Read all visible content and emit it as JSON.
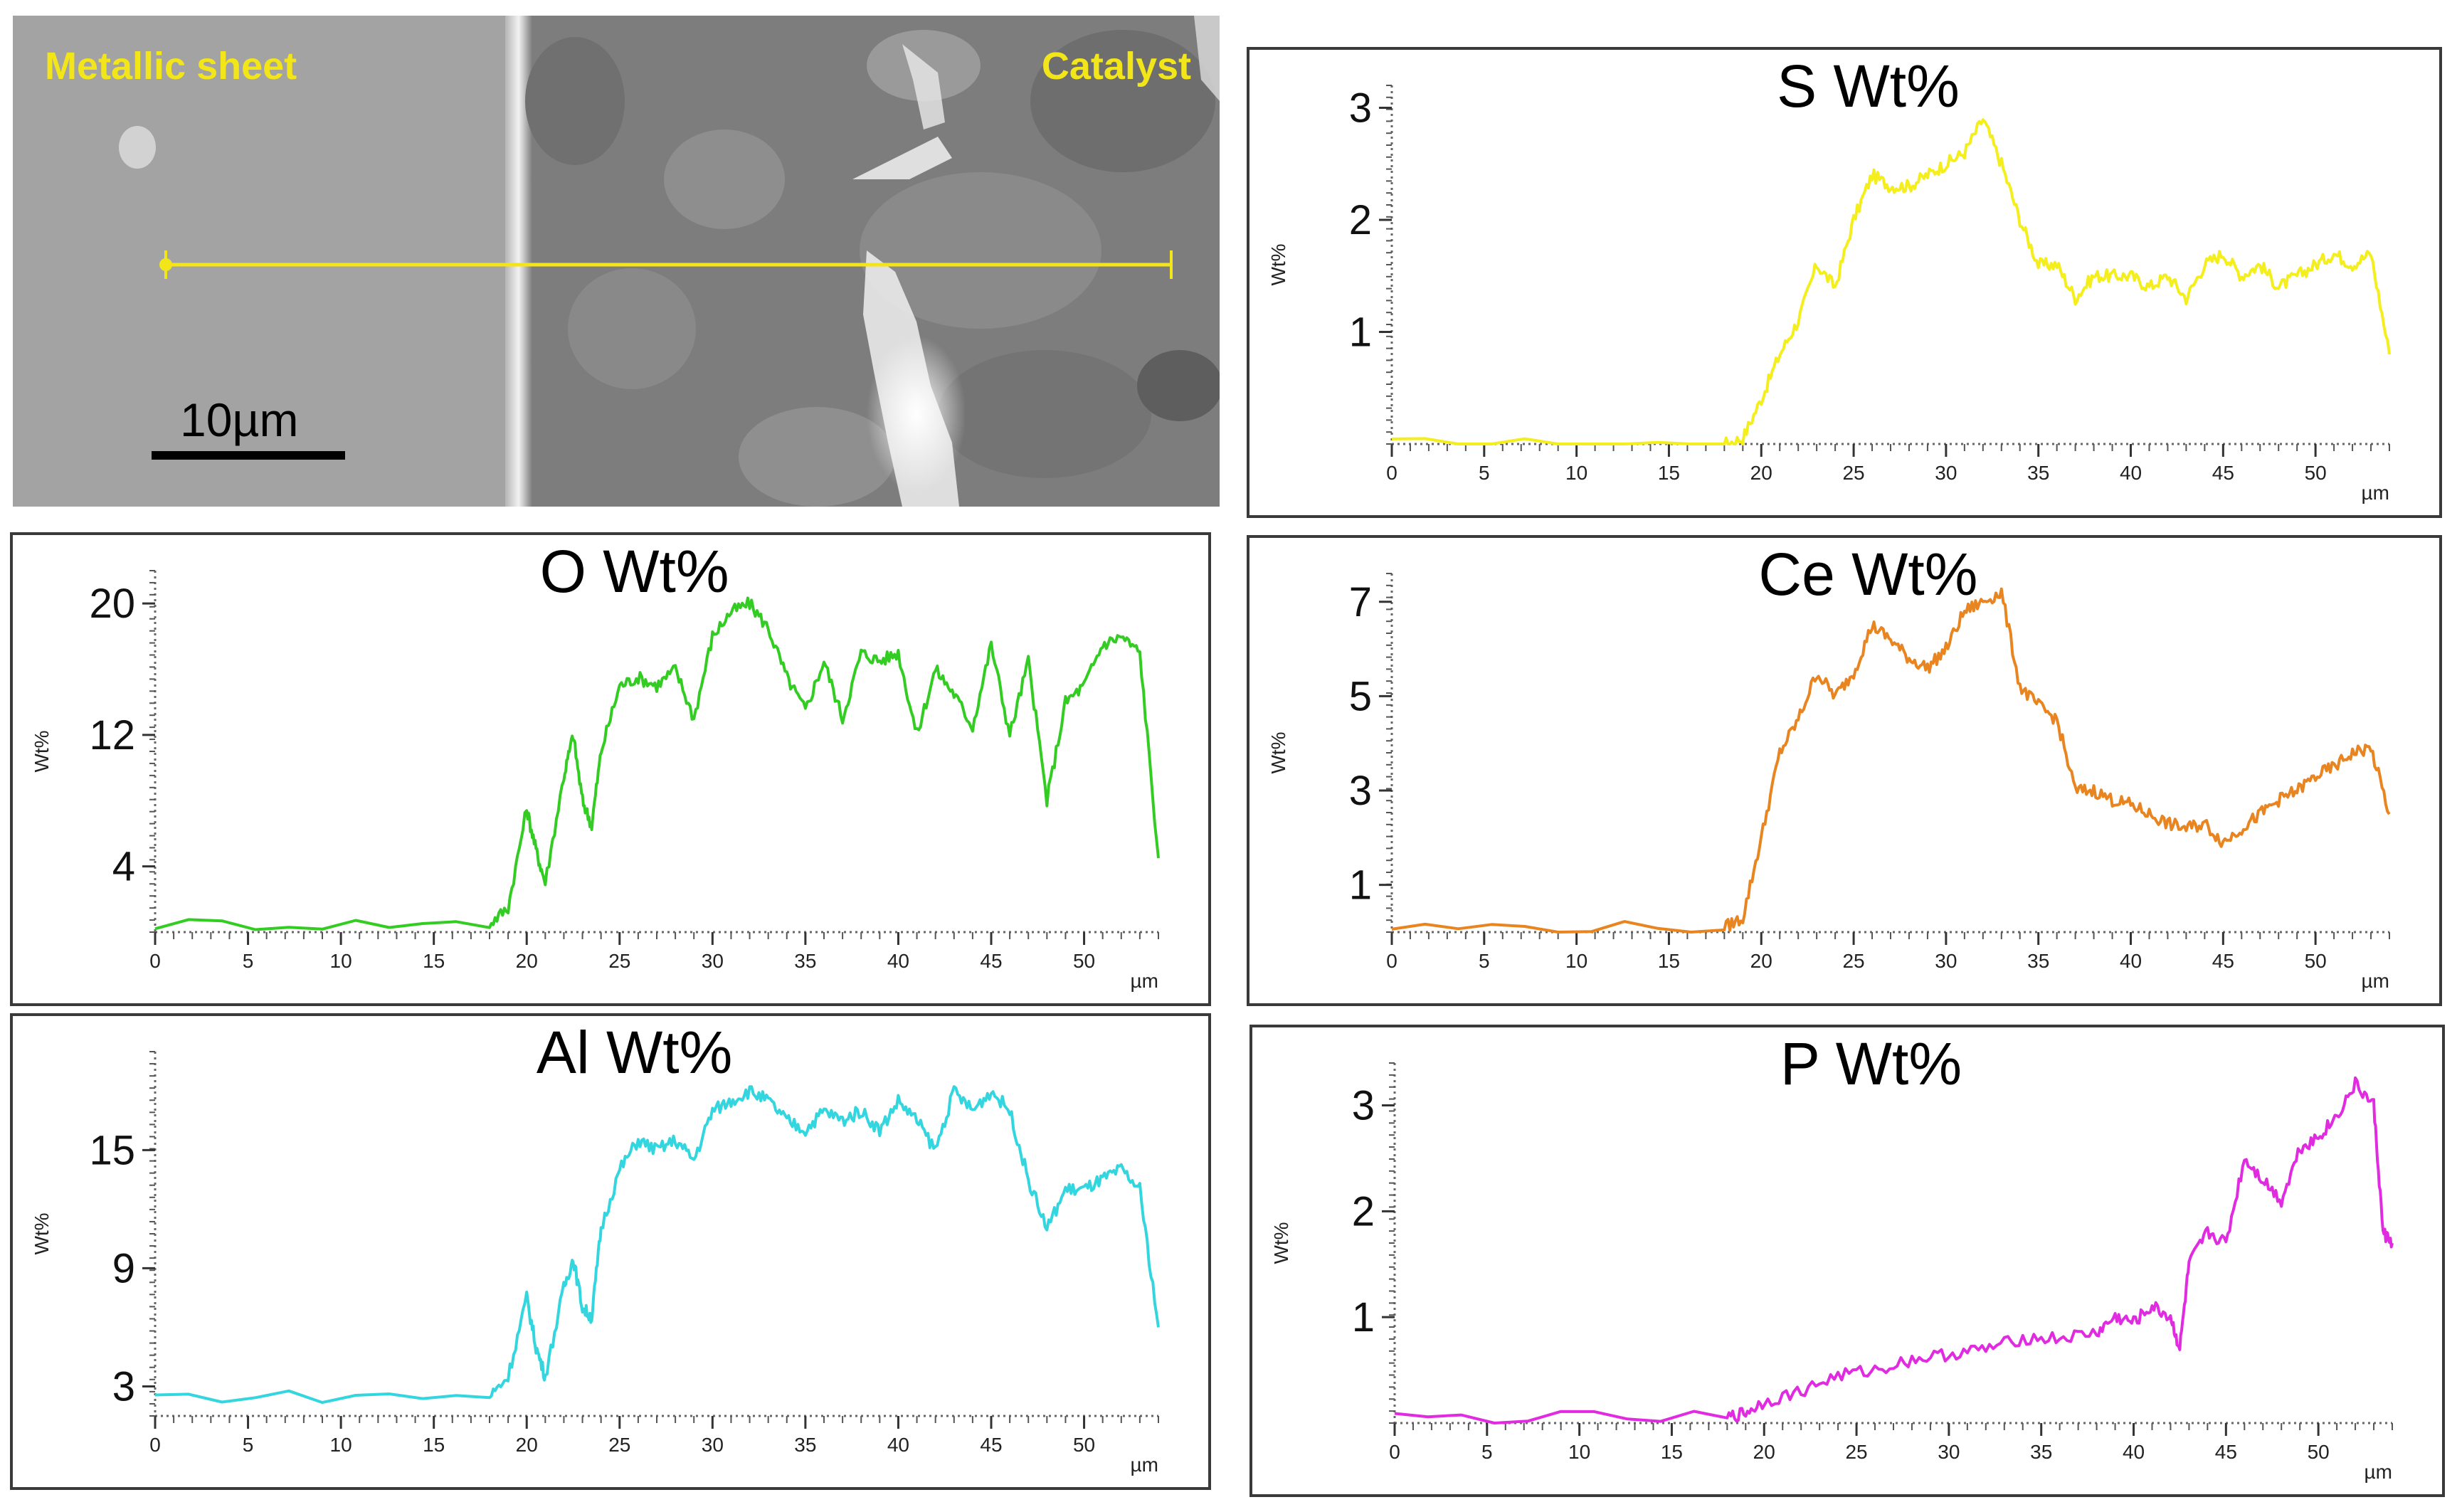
{
  "sem_image": {
    "left_label": "Metallic sheet",
    "right_label": "Catalyst",
    "scale_bar_label": "10µm",
    "line_color": "#f2e61a"
  },
  "chart_data": [
    {
      "type": "line",
      "id": "s",
      "title": "S Wt%",
      "ylabel": "Wt%",
      "xlabel": "µm",
      "color": "#f5ee1d",
      "xlim": [
        0,
        54
      ],
      "ylim": [
        0,
        3.2
      ],
      "yticks": [
        1,
        2,
        3
      ],
      "xticks": [
        0,
        5,
        10,
        15,
        20,
        25,
        30,
        35,
        40,
        45,
        50
      ],
      "x": [
        0,
        18,
        19,
        20,
        21,
        22,
        23,
        24,
        25,
        26,
        27,
        28,
        29,
        30,
        31,
        32,
        33,
        34,
        35,
        36,
        37,
        38,
        39,
        40,
        41,
        42,
        43,
        44,
        45,
        46,
        47,
        48,
        49,
        50,
        51,
        52,
        53,
        54
      ],
      "values": [
        0,
        0,
        0.05,
        0.4,
        0.8,
        1.1,
        1.6,
        1.4,
        2.0,
        2.4,
        2.3,
        2.3,
        2.4,
        2.5,
        2.6,
        2.9,
        2.5,
        2.0,
        1.6,
        1.6,
        1.3,
        1.5,
        1.5,
        1.5,
        1.4,
        1.5,
        1.3,
        1.6,
        1.7,
        1.5,
        1.6,
        1.4,
        1.5,
        1.6,
        1.7,
        1.6,
        1.7,
        0.8
      ]
    },
    {
      "type": "line",
      "id": "o",
      "title": "O Wt%",
      "ylabel": "Wt%",
      "xlabel": "µm",
      "color": "#33cc22",
      "xlim": [
        0,
        54
      ],
      "ylim": [
        0,
        22
      ],
      "yticks": [
        4,
        12,
        20
      ],
      "xticks": [
        0,
        5,
        10,
        15,
        20,
        25,
        30,
        35,
        40,
        45,
        50
      ],
      "x": [
        0,
        18,
        19,
        20,
        20.5,
        21,
        22,
        22.5,
        23,
        23.5,
        24,
        25,
        26,
        27,
        28,
        29,
        30,
        31,
        32,
        33,
        34,
        35,
        36,
        37,
        38,
        39,
        40,
        41,
        42,
        43,
        44,
        45,
        46,
        47,
        48,
        49,
        50,
        51,
        52,
        53,
        54
      ],
      "values": [
        0.5,
        0.5,
        1.5,
        7.5,
        5.0,
        3.0,
        9.5,
        12.0,
        8.0,
        6.5,
        11.0,
        15.0,
        15.5,
        15.0,
        16.0,
        13.0,
        18.0,
        19.5,
        20.0,
        18.5,
        15.5,
        13.5,
        16.5,
        13.0,
        17.0,
        16.5,
        17.0,
        12.0,
        16.0,
        14.5,
        12.5,
        17.5,
        12.0,
        16.5,
        8.0,
        14.0,
        15.0,
        17.5,
        18.0,
        17.0,
        4.5
      ]
    },
    {
      "type": "line",
      "id": "ce",
      "title": "Ce Wt%",
      "ylabel": "Wt%",
      "xlabel": "µm",
      "color": "#e88520",
      "xlim": [
        0,
        54
      ],
      "ylim": [
        0,
        7.6
      ],
      "yticks": [
        1,
        3,
        5,
        7
      ],
      "xticks": [
        0,
        5,
        10,
        15,
        20,
        25,
        30,
        35,
        40,
        45,
        50
      ],
      "x": [
        0,
        18,
        19,
        20,
        21,
        22,
        23,
        24,
        25,
        26,
        27,
        28,
        29,
        30,
        31,
        32,
        33,
        34,
        35,
        36,
        37,
        38,
        39,
        40,
        41,
        42,
        43,
        44,
        45,
        46,
        47,
        48,
        49,
        50,
        51,
        52,
        53,
        54
      ],
      "values": [
        0.1,
        0.1,
        0.3,
        2.0,
        3.8,
        4.5,
        5.5,
        5.0,
        5.5,
        6.5,
        6.2,
        5.8,
        5.6,
        6.0,
        6.8,
        7.0,
        7.2,
        5.2,
        4.8,
        4.5,
        3.0,
        3.0,
        2.8,
        2.7,
        2.5,
        2.3,
        2.2,
        2.3,
        1.9,
        2.2,
        2.5,
        2.8,
        3.0,
        3.3,
        3.5,
        3.8,
        3.9,
        2.5
      ]
    },
    {
      "type": "line",
      "id": "al",
      "title": "Al Wt%",
      "ylabel": "Wt%",
      "xlabel": "µm",
      "color": "#33d6df",
      "xlim": [
        0,
        54
      ],
      "ylim": [
        1.5,
        20
      ],
      "yticks": [
        3,
        9,
        15
      ],
      "xticks": [
        0,
        5,
        10,
        15,
        20,
        25,
        30,
        35,
        40,
        45,
        50
      ],
      "x": [
        0,
        18,
        19,
        20,
        20.5,
        21,
        22,
        22.5,
        23,
        23.5,
        24,
        25,
        26,
        27,
        28,
        29,
        30,
        31,
        32,
        33,
        34,
        35,
        36,
        37,
        38,
        39,
        40,
        41,
        42,
        43,
        44,
        45,
        46,
        47,
        48,
        49,
        50,
        51,
        52,
        53,
        54
      ],
      "values": [
        2.5,
        2.5,
        3.5,
        7.5,
        5.0,
        3.5,
        8.0,
        9.5,
        7.0,
        6.5,
        11.0,
        14.0,
        15.5,
        15.0,
        15.5,
        14.5,
        17.0,
        17.5,
        18.0,
        17.5,
        16.5,
        16.0,
        17.0,
        16.5,
        17.0,
        16.0,
        17.5,
        16.5,
        15.0,
        18.0,
        17.0,
        18.0,
        17.0,
        13.5,
        11.0,
        13.0,
        13.0,
        13.5,
        14.0,
        13.0,
        6.0
      ]
    },
    {
      "type": "line",
      "id": "p",
      "title": "P Wt%",
      "ylabel": "Wt%",
      "xlabel": "µm",
      "color": "#e02be0",
      "xlim": [
        0,
        54
      ],
      "ylim": [
        0,
        3.4
      ],
      "yticks": [
        1,
        2,
        3
      ],
      "xticks": [
        0,
        5,
        10,
        15,
        20,
        25,
        30,
        35,
        40,
        45,
        50
      ],
      "x": [
        0,
        18,
        19,
        20,
        22,
        24,
        26,
        28,
        30,
        32,
        34,
        36,
        38,
        39,
        40,
        41,
        42,
        42.5,
        43,
        44,
        45,
        46,
        47,
        48,
        49,
        50,
        51,
        52,
        53,
        53.5,
        54
      ],
      "values": [
        0.05,
        0.05,
        0.1,
        0.2,
        0.3,
        0.45,
        0.5,
        0.6,
        0.65,
        0.7,
        0.8,
        0.8,
        0.85,
        1.0,
        0.95,
        1.1,
        1.0,
        0.7,
        1.5,
        1.8,
        1.7,
        2.5,
        2.3,
        2.1,
        2.6,
        2.7,
        2.9,
        3.2,
        3.0,
        1.8,
        1.7
      ]
    }
  ]
}
